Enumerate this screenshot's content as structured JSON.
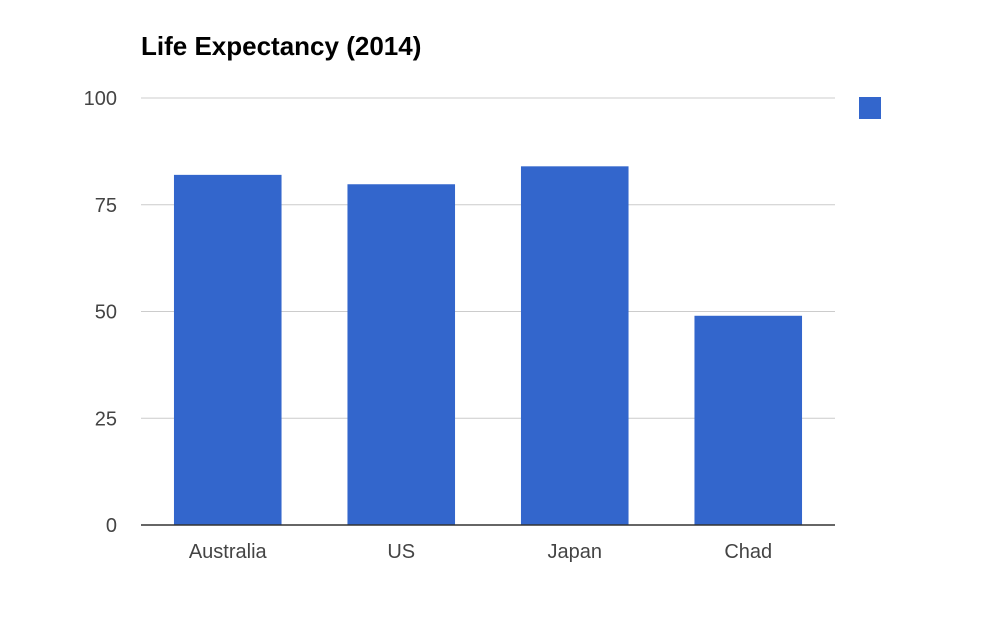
{
  "chart_data": {
    "type": "bar",
    "title": "Life Expectancy (2014)",
    "categories": [
      "Australia",
      "US",
      "Japan",
      "Chad"
    ],
    "series": [
      {
        "values": [
          82,
          79.8,
          84,
          49
        ]
      }
    ],
    "ylim": [
      0,
      100
    ],
    "yticks": [
      "0",
      "25",
      "50",
      "75",
      "100"
    ],
    "xlabel": "",
    "ylabel": "",
    "grid": true,
    "legend": "right",
    "colors": {
      "bar": "#3366cc",
      "grid": "#cccccc",
      "axis": "#333333",
      "tick_label": "#444444"
    }
  }
}
